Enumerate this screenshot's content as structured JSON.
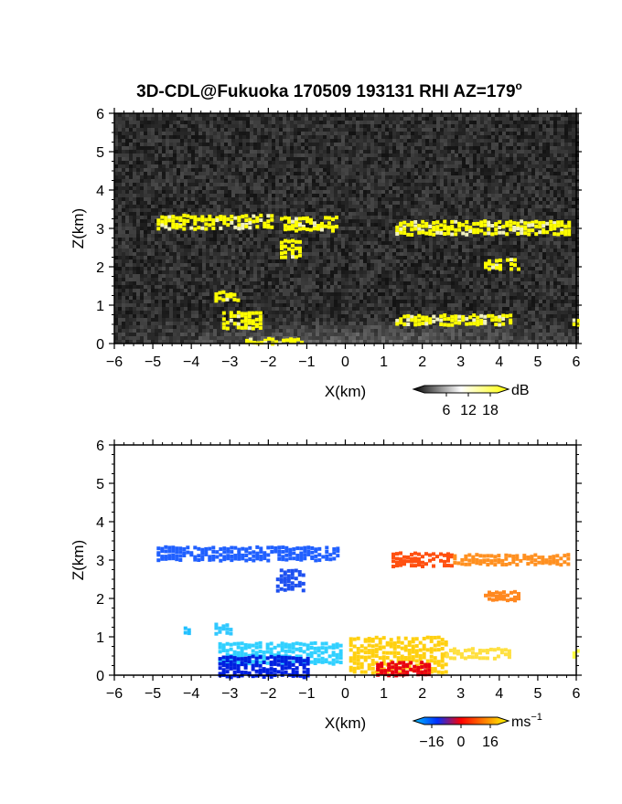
{
  "title": "3D-CDL@Fukuoka 170509 193131 RHI AZ=179",
  "title_degree": "o",
  "chart_data": [
    {
      "type": "heatmap",
      "quantity": "reflectivity",
      "xlabel": "X(km)",
      "ylabel": "Z(km)",
      "xlim": [
        -6,
        6
      ],
      "ylim": [
        0,
        6
      ],
      "xticks": [
        -6,
        -5,
        -4,
        -3,
        -2,
        -1,
        0,
        1,
        2,
        3,
        4,
        5,
        6
      ],
      "yticks": [
        0,
        1,
        2,
        3,
        4,
        5,
        6
      ],
      "grid": false,
      "background": "noise",
      "colorbar": {
        "unit": "dB",
        "ticks": [
          "6",
          "12",
          "18"
        ],
        "range": [
          0,
          20
        ],
        "colors": [
          "#000000",
          "#ffffff",
          "#ffff00"
        ]
      },
      "features": [
        {
          "x": [
            -4.9,
            -1.9
          ],
          "z": [
            3.05,
            3.35
          ],
          "value": 19
        },
        {
          "x": [
            -1.7,
            -0.2
          ],
          "z": [
            3.0,
            3.3
          ],
          "value": 19
        },
        {
          "x": [
            -1.7,
            -1.2
          ],
          "z": [
            2.3,
            2.7
          ],
          "value": 19
        },
        {
          "x": [
            1.3,
            5.8
          ],
          "z": [
            2.85,
            3.2
          ],
          "value": 19
        },
        {
          "x": [
            3.6,
            4.5
          ],
          "z": [
            1.95,
            2.2
          ],
          "value": 19
        },
        {
          "x": [
            -3.4,
            -2.8
          ],
          "z": [
            1.15,
            1.35
          ],
          "value": 19
        },
        {
          "x": [
            -3.2,
            -2.2
          ],
          "z": [
            0.4,
            0.85
          ],
          "value": 19
        },
        {
          "x": [
            1.3,
            4.3
          ],
          "z": [
            0.5,
            0.75
          ],
          "value": 19
        },
        {
          "x": [
            -2.6,
            -1.1
          ],
          "z": [
            0.0,
            0.15
          ],
          "value": 19
        },
        {
          "x": [
            5.9,
            6.0
          ],
          "z": [
            0.5,
            0.65
          ],
          "value": 19
        }
      ]
    },
    {
      "type": "heatmap",
      "quantity": "doppler_velocity",
      "xlabel": "X(km)",
      "ylabel": "Z(km)",
      "xlim": [
        -6,
        6
      ],
      "ylim": [
        0,
        6
      ],
      "xticks": [
        -6,
        -5,
        -4,
        -3,
        -2,
        -1,
        0,
        1,
        2,
        3,
        4,
        5,
        6
      ],
      "yticks": [
        0,
        1,
        2,
        3,
        4,
        5,
        6
      ],
      "grid": false,
      "colorbar": {
        "unit": "ms",
        "unit_exponent": "−1",
        "ticks": [
          "−16",
          "0",
          "16"
        ],
        "range": [
          -20,
          20
        ],
        "colors": [
          "#00c0ff",
          "#0030ff",
          "#ff0000",
          "#ff8000",
          "#ffff00"
        ]
      },
      "features": [
        {
          "x": [
            -4.9,
            -0.2
          ],
          "z": [
            3.05,
            3.35
          ],
          "value": -8,
          "color": "#2060ff"
        },
        {
          "x": [
            -1.8,
            -1.1
          ],
          "z": [
            2.25,
            2.75
          ],
          "value": -8,
          "color": "#1e50f0"
        },
        {
          "x": [
            1.2,
            2.8
          ],
          "z": [
            2.85,
            3.2
          ],
          "value": 3,
          "color": "#ff5010"
        },
        {
          "x": [
            2.8,
            5.8
          ],
          "z": [
            2.9,
            3.15
          ],
          "value": 6,
          "color": "#ff9020"
        },
        {
          "x": [
            3.6,
            4.5
          ],
          "z": [
            1.95,
            2.2
          ],
          "value": 6,
          "color": "#ff8820"
        },
        {
          "x": [
            -4.2,
            -4.1
          ],
          "z": [
            1.15,
            1.25
          ],
          "value": -14,
          "color": "#20c0ff"
        },
        {
          "x": [
            -3.4,
            -3.0
          ],
          "z": [
            1.1,
            1.35
          ],
          "value": -14,
          "color": "#30c8ff"
        },
        {
          "x": [
            -3.3,
            -0.1
          ],
          "z": [
            0.3,
            0.85
          ],
          "value": -14,
          "color": "#30d0ff"
        },
        {
          "x": [
            -3.3,
            -1.0
          ],
          "z": [
            0.0,
            0.5
          ],
          "value": -18,
          "color": "#0020e0"
        },
        {
          "x": [
            0.1,
            2.6
          ],
          "z": [
            0.1,
            1.0
          ],
          "value": 14,
          "color": "#ffd010"
        },
        {
          "x": [
            2.6,
            4.3
          ],
          "z": [
            0.45,
            0.7
          ],
          "value": 16,
          "color": "#ffe040"
        },
        {
          "x": [
            0.8,
            2.2
          ],
          "z": [
            0.0,
            0.35
          ],
          "value": 1,
          "color": "#e80010"
        },
        {
          "x": [
            5.9,
            6.0
          ],
          "z": [
            0.5,
            0.65
          ],
          "value": 16,
          "color": "#ffff40"
        }
      ]
    }
  ]
}
